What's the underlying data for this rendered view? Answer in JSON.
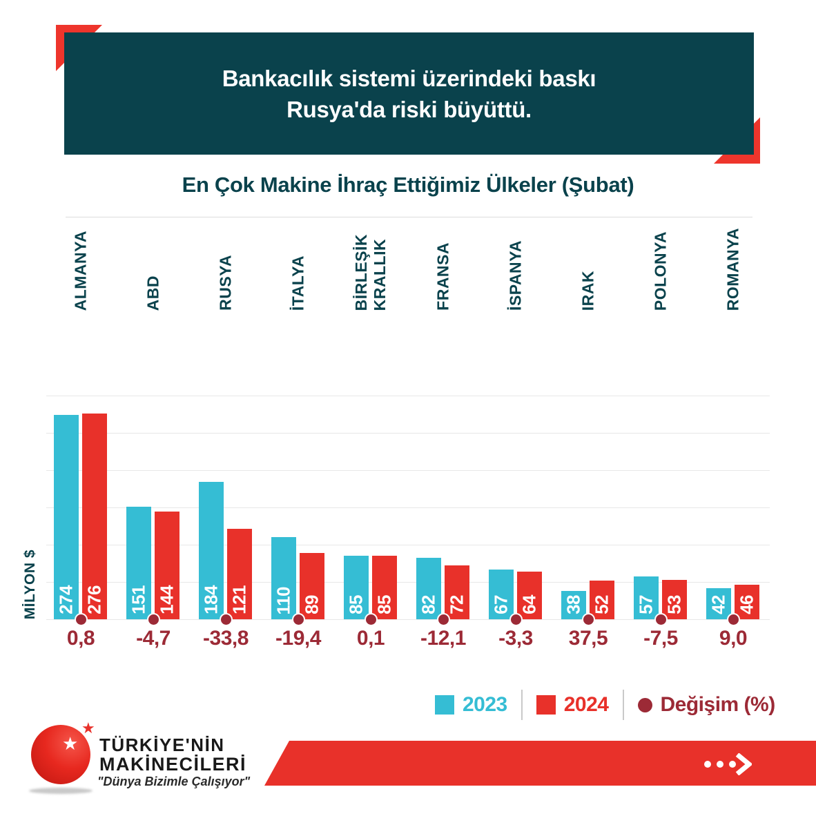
{
  "colors": {
    "teal": "#0a424c",
    "cyan": "#35bdd4",
    "red": "#e8312a",
    "accent_red": "#ee352c",
    "maroon": "#9c2a36",
    "grid": "#e7e7e7",
    "white": "#ffffff"
  },
  "header": {
    "line1": "Bankacılık sistemi üzerindeki baskı",
    "line2": "Rusya'da riski büyüttü."
  },
  "subtitle": "En Çok Makine İhraç Ettiğimiz Ülkeler (Şubat)",
  "chart_data": {
    "type": "bar",
    "title": "En Çok Makine İhraç Ettiğimiz Ülkeler (Şubat)",
    "ylabel": "MİLYON $",
    "ylim": [
      0,
      300
    ],
    "grid_interval": 50,
    "grid_on": true,
    "categories": [
      "ALMANYA",
      "ABD",
      "RUSYA",
      "İTALYA",
      "BİRLEŞİK\nKRALLIK",
      "FRANSA",
      "İSPANYA",
      "IRAK",
      "POLONYA",
      "ROMANYA"
    ],
    "series": [
      {
        "name": "2023",
        "color": "#35bdd4",
        "values": [
          274,
          151,
          184,
          110,
          85,
          82,
          67,
          38,
          57,
          42
        ]
      },
      {
        "name": "2024",
        "color": "#e8312a",
        "values": [
          276,
          144,
          121,
          89,
          85,
          72,
          64,
          52,
          53,
          46
        ]
      }
    ],
    "change_series": {
      "name": "Değişim (%)",
      "color": "#9c2a36",
      "marker": "dot",
      "values": [
        0.8,
        -4.7,
        -33.8,
        -19.4,
        0.1,
        -12.1,
        -3.3,
        37.5,
        -7.5,
        9.0
      ],
      "values_display": [
        "0,8",
        "-4,7",
        "-33,8",
        "-19,4",
        "0,1",
        "-12,1",
        "-3,3",
        "37,5",
        "-7,5",
        "9,0"
      ]
    },
    "legend_position": "bottom-right"
  },
  "legend": {
    "items": [
      {
        "label": "2023",
        "swatch": "square",
        "color": "#35bdd4"
      },
      {
        "label": "2024",
        "swatch": "square",
        "color": "#e8312a"
      },
      {
        "label": "Değişim (%)",
        "swatch": "circle",
        "color": "#9c2a36"
      }
    ]
  },
  "footer": {
    "brand_line1": "TÜRKİYE'NİN",
    "brand_line2": "MAKİNECİLERİ",
    "tagline": "\"Dünya Bizimle Çalışıyor\"",
    "icons": {
      "logo": "red-globe-star-logo",
      "star": "star-icon",
      "more": "ellipsis-chevron-right-icon"
    }
  }
}
